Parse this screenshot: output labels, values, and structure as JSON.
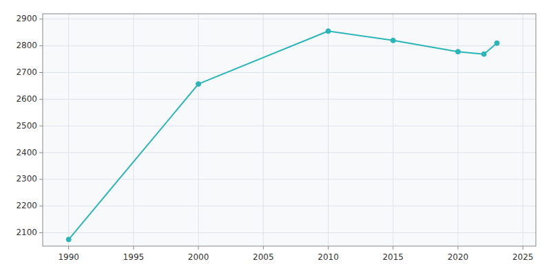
{
  "chart_data": {
    "type": "line",
    "x": [
      1990,
      2000,
      2010,
      2015,
      2020,
      2022,
      2023
    ],
    "values": [
      2075,
      2657,
      2855,
      2820,
      2778,
      2769,
      2810
    ],
    "color": "#2ab5b8",
    "marker": "circle",
    "xlim": [
      1988,
      2026
    ],
    "ylim": [
      2050,
      2920
    ],
    "xticks": [
      1990,
      1995,
      2000,
      2005,
      2010,
      2015,
      2020,
      2025
    ],
    "yticks": [
      2100,
      2200,
      2300,
      2400,
      2500,
      2600,
      2700,
      2800,
      2900
    ],
    "grid": true
  }
}
